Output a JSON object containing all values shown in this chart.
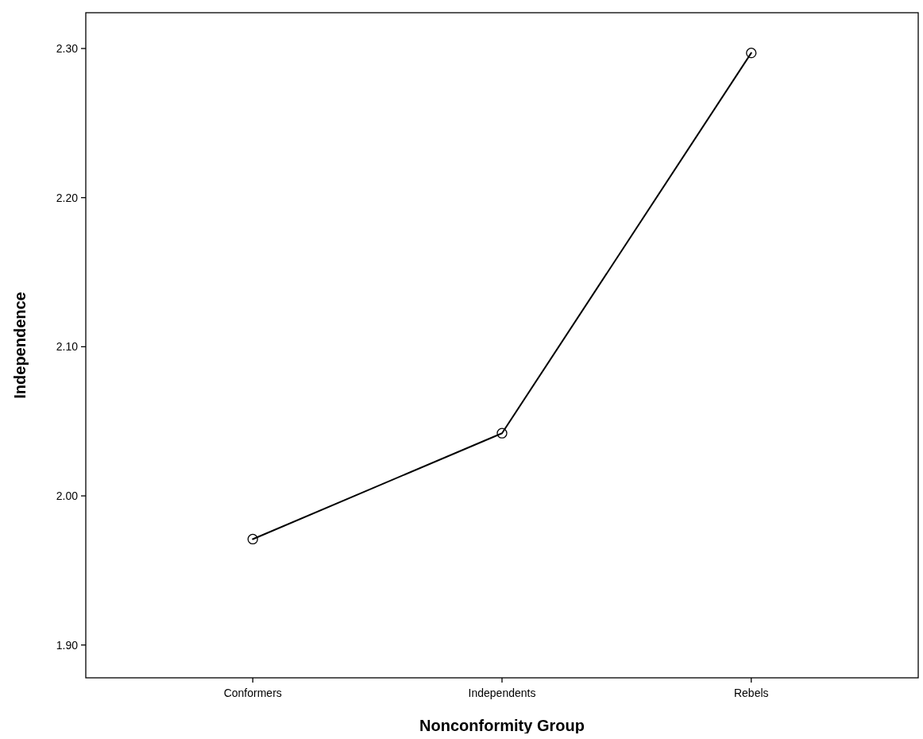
{
  "chart_data": {
    "type": "line",
    "xlabel": "Nonconformity Group",
    "ylabel": "Independence",
    "categories": [
      "Conformers",
      "Independents",
      "Rebels"
    ],
    "series": [
      {
        "color": "#000000",
        "values": [
          1.971,
          2.042,
          2.297
        ]
      }
    ],
    "ylim": [
      1.878,
      2.324
    ],
    "yticks": [
      {
        "value": 1.9,
        "label": "1.90"
      },
      {
        "value": 2.0,
        "label": "2.00"
      },
      {
        "value": 2.1,
        "label": "2.10"
      },
      {
        "value": 2.2,
        "label": "2.20"
      },
      {
        "value": 2.3,
        "label": "2.30"
      }
    ],
    "grid": false,
    "marker": "circle",
    "line_style": "solid"
  }
}
